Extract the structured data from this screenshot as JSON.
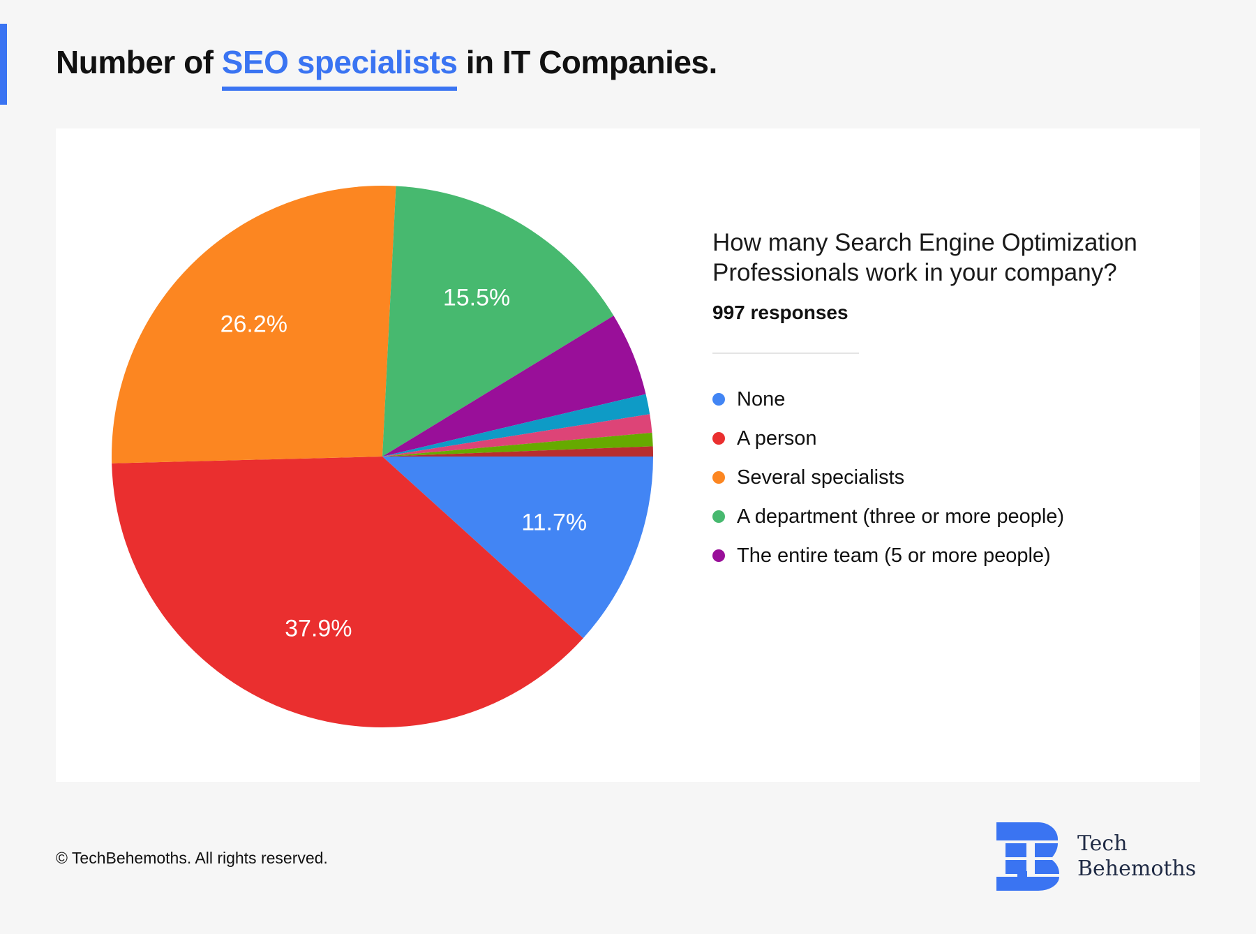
{
  "header": {
    "title_prefix": "Number of ",
    "title_highlight": "SEO specialists",
    "title_suffix": " in IT Companies.",
    "accent_color": "#3a74f2"
  },
  "chart": {
    "question": "How many Search Engine Optimization Professionals work in your company?",
    "responses": "997 responses",
    "legend": [
      {
        "label": "None",
        "color": "#4285f4"
      },
      {
        "label": "A person",
        "color": "#ea2f2f"
      },
      {
        "label": "Several specialists",
        "color": "#fc8621"
      },
      {
        "label": "A department (three or more people)",
        "color": "#47b96f"
      },
      {
        "label": "The entire team (5 or more people)",
        "color": "#990f99"
      }
    ],
    "slice_labels": [
      "11.7%",
      "37.9%",
      "26.2%",
      "15.5%"
    ]
  },
  "chart_data": {
    "type": "pie",
    "title": "How many Search Engine Optimization Professionals work in your company?",
    "subtitle": "997 responses",
    "categories": [
      "None",
      "A person",
      "Several specialists",
      "A department (three or more people)",
      "The entire team (5 or more people)",
      "Other 1",
      "Other 2",
      "Other 3",
      "Other 4"
    ],
    "values": [
      11.7,
      37.9,
      26.2,
      15.5,
      5.0,
      1.2,
      1.1,
      0.8,
      0.6
    ],
    "colors": [
      "#4285f4",
      "#ea2f2f",
      "#fc8621",
      "#47b96f",
      "#990f99",
      "#0e9bc6",
      "#dd4477",
      "#66aa00",
      "#b82e2e"
    ],
    "legend_position": "right",
    "labels_shown": [
      "11.7%",
      "37.9%",
      "26.2%",
      "15.5%"
    ]
  },
  "footer": {
    "copyright": "© TechBehemoths. All rights reserved."
  },
  "logo": {
    "line1": "Tech",
    "line2": "Behemoths"
  }
}
